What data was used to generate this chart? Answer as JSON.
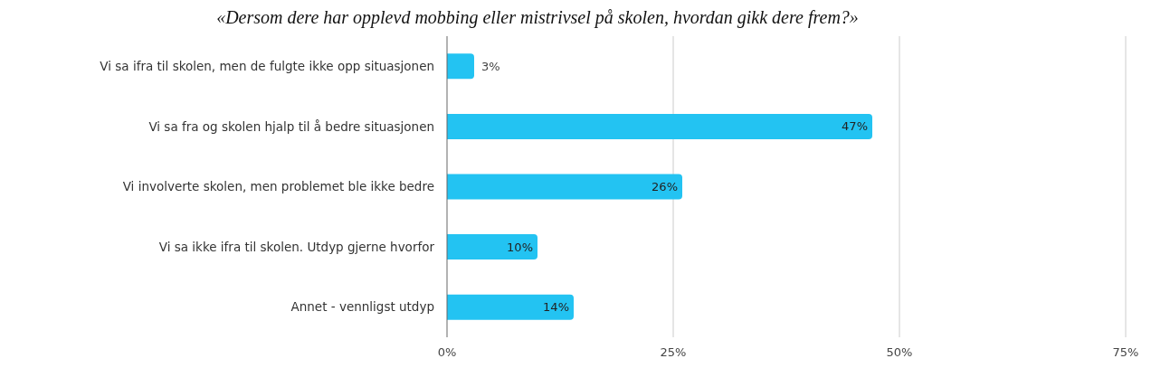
{
  "chart_data": {
    "type": "bar",
    "orientation": "horizontal",
    "title": "«Dersom dere har opplevd mobbing eller mistrivsel på skolen, hvordan gikk dere frem?»",
    "categories": [
      "Vi sa ifra til skolen, men de fulgte ikke opp situasjonen",
      "Vi sa fra og skolen hjalp til å bedre situasjonen",
      "Vi involverte skolen, men problemet ble ikke bedre",
      "Vi sa ikke ifra til skolen. Utdyp gjerne hvorfor",
      "Annet - vennligst utdyp"
    ],
    "values": [
      3,
      47,
      26,
      10,
      14
    ],
    "value_labels": [
      "3%",
      "47%",
      "26%",
      "10%",
      "14%"
    ],
    "color": "#23c3f2",
    "xlim": [
      0,
      75
    ],
    "xticks": [
      {
        "value": 0,
        "label": "0%"
      },
      {
        "value": 25,
        "label": "25%"
      },
      {
        "value": 50,
        "label": "50%"
      },
      {
        "value": 75,
        "label": "75%"
      }
    ],
    "grid": "x"
  }
}
